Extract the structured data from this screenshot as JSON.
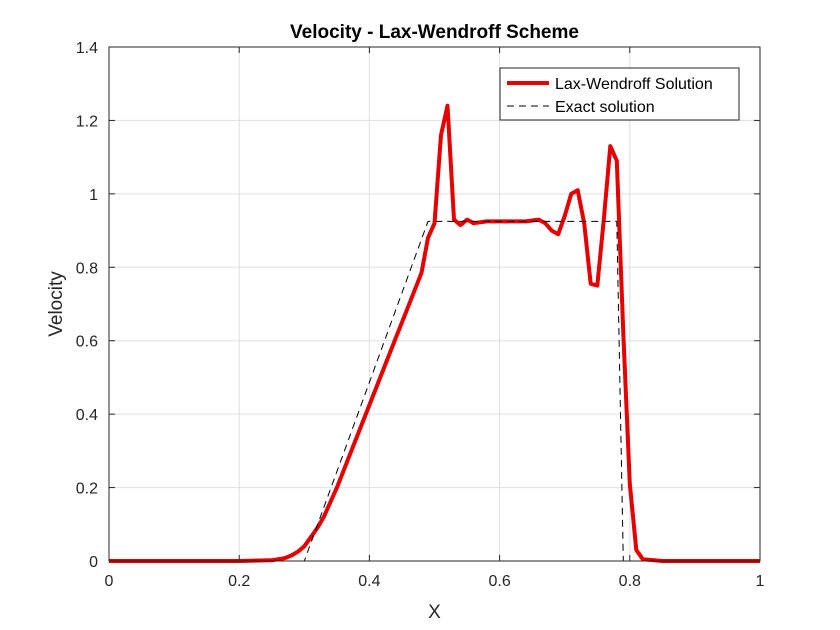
{
  "chart_data": {
    "type": "line",
    "title": "Velocity - Lax-Wendroff Scheme",
    "xlabel": "X",
    "ylabel": "Velocity",
    "xlim": [
      0,
      1
    ],
    "ylim": [
      0,
      1.4
    ],
    "xticks": [
      0,
      0.2,
      0.4,
      0.6,
      0.8,
      1
    ],
    "xtick_labels": [
      "0",
      "0.2",
      "0.4",
      "0.6",
      "0.8",
      "1"
    ],
    "yticks": [
      0,
      0.2,
      0.4,
      0.6,
      0.8,
      1,
      1.2,
      1.4
    ],
    "ytick_labels": [
      "0",
      "0.2",
      "0.4",
      "0.6",
      "0.8",
      "1",
      "1.2",
      "1.4"
    ],
    "grid": true,
    "legend_position": "top-right",
    "series": [
      {
        "name": "Lax-Wendroff Solution",
        "color": "#e60000",
        "style": "solid",
        "x": [
          0,
          0.2,
          0.25,
          0.27,
          0.28,
          0.29,
          0.3,
          0.31,
          0.32,
          0.33,
          0.34,
          0.35,
          0.36,
          0.38,
          0.4,
          0.42,
          0.44,
          0.46,
          0.48,
          0.49,
          0.5,
          0.51,
          0.52,
          0.53,
          0.54,
          0.55,
          0.56,
          0.58,
          0.6,
          0.62,
          0.64,
          0.66,
          0.67,
          0.68,
          0.69,
          0.7,
          0.71,
          0.72,
          0.73,
          0.74,
          0.75,
          0.76,
          0.77,
          0.78,
          0.79,
          0.8,
          0.81,
          0.82,
          0.85,
          1.0
        ],
        "y": [
          0,
          0,
          0.002,
          0.008,
          0.015,
          0.025,
          0.04,
          0.065,
          0.09,
          0.12,
          0.16,
          0.2,
          0.245,
          0.335,
          0.425,
          0.515,
          0.605,
          0.695,
          0.785,
          0.88,
          0.92,
          1.16,
          1.24,
          0.93,
          0.915,
          0.93,
          0.92,
          0.925,
          0.925,
          0.925,
          0.925,
          0.93,
          0.92,
          0.9,
          0.89,
          0.94,
          1.0,
          1.01,
          0.92,
          0.755,
          0.75,
          0.93,
          1.13,
          1.09,
          0.62,
          0.21,
          0.03,
          0.005,
          0,
          0
        ]
      },
      {
        "name": "Exact solution",
        "color": "#000000",
        "style": "dashed",
        "x": [
          0,
          0.3,
          0.49,
          0.78,
          0.79,
          1.0
        ],
        "y": [
          0,
          0,
          0.925,
          0.925,
          0,
          0
        ]
      }
    ]
  }
}
